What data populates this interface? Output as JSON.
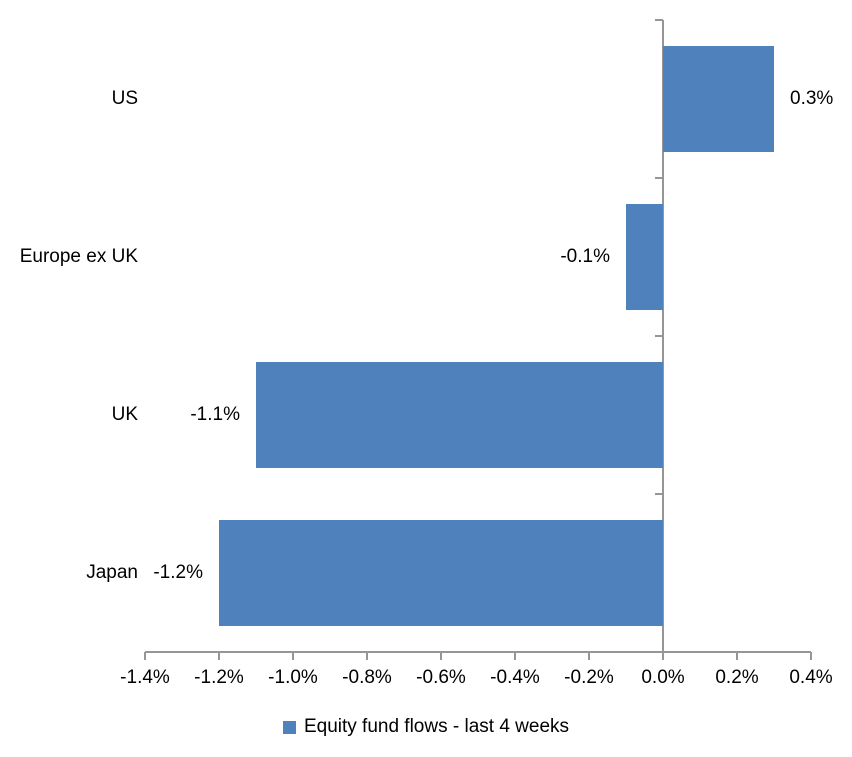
{
  "chart_data": {
    "type": "bar",
    "orientation": "horizontal",
    "title": "",
    "categories": [
      "US",
      "Europe ex UK",
      "UK",
      "Japan"
    ],
    "series": [
      {
        "name": "Equity fund flows - last 4 weeks",
        "values": [
          0.3,
          -0.1,
          -1.1,
          -1.2
        ],
        "data_labels": [
          "0.3%",
          "-0.1%",
          "-1.1%",
          "-1.2%"
        ],
        "color": "#4F81BD"
      }
    ],
    "xlabel": "",
    "ylabel": "",
    "xlim": [
      -1.4,
      0.4
    ],
    "x_ticks": [
      -1.4,
      -1.2,
      -1.0,
      -0.8,
      -0.6,
      -0.4,
      -0.2,
      0.0,
      0.2,
      0.4
    ],
    "x_tick_labels": [
      "-1.4%",
      "-1.2%",
      "-1.0%",
      "-0.8%",
      "-0.6%",
      "-0.4%",
      "-0.2%",
      "0.0%",
      "0.2%",
      "0.4%"
    ],
    "grid": false,
    "data_label_position": "outside-end",
    "legend_position": "bottom",
    "axis_color": "#969696",
    "text_color": "#000000",
    "background_color": "#FFFFFF"
  }
}
